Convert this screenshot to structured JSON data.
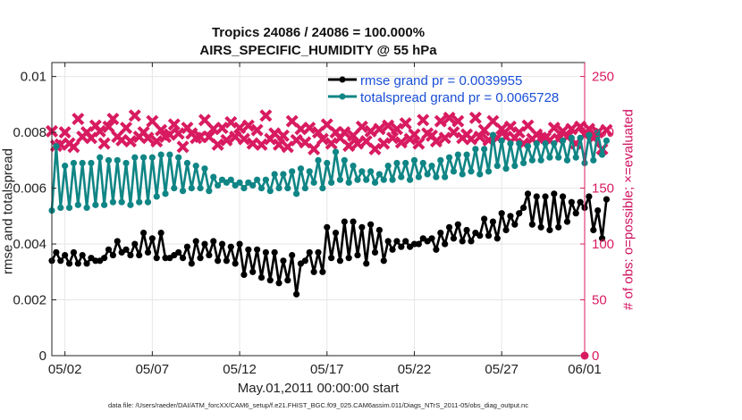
{
  "colors": {
    "rmse": "#000000",
    "spread": "#108585",
    "obs": "#d81b60",
    "grid": "#e6e6e6",
    "axis": "#222222",
    "legend_text": "#1a4fd6"
  },
  "page": {
    "title_line1": "Tropics 24086 / 24086 = 100.000%",
    "title_line2": "AIRS_SPECIFIC_HUMIDITY @ 55 hPa",
    "xlabel": "May.01,2011 00:00:00 start",
    "ylabel_left": "rmse and totalspread",
    "ylabel_right": "# of obs: o=possible; ×=evaluated",
    "datafile": "data file: /Users/raeder/DAI/ATM_forcXX/CAM6_setup/f.e21.FHIST_BGC.f09_025.CAM6assim.011/Diags_NTrS_2011-05/obs_diag_output.nc"
  },
  "chart_data": {
    "type": "line",
    "x_range": [
      0.5,
      31
    ],
    "x_ticks": [
      1.25,
      6.25,
      11.25,
      16.25,
      21.25,
      26.25,
      31.0
    ],
    "x_tick_labels": [
      "05/02",
      "05/07",
      "05/12",
      "05/17",
      "05/22",
      "05/27",
      "06/01"
    ],
    "ylim_left": [
      0,
      0.0105
    ],
    "yticks_left": [
      0,
      0.002,
      0.004,
      0.006,
      0.008,
      0.01
    ],
    "ytick_labels_left": [
      "0",
      "0.002",
      "0.004",
      "0.006",
      "0.008",
      "0.01"
    ],
    "ylim_right": [
      0,
      262.5
    ],
    "yticks_right": [
      0,
      50,
      100,
      150,
      200,
      250
    ],
    "ytick_labels_right": [
      "0",
      "50",
      "100",
      "150",
      "200",
      "250"
    ],
    "x_start": 0.5,
    "x_step": 0.25,
    "series": [
      {
        "name": "rmse grand pr = 0.0039955",
        "axis": "left",
        "color": "#000000",
        "marker": "circle",
        "values": [
          0.0034,
          0.0037,
          0.0034,
          0.0036,
          0.0033,
          0.0037,
          0.0033,
          0.0036,
          0.0033,
          0.0035,
          0.0034,
          0.0034,
          0.0035,
          0.0038,
          0.0036,
          0.0041,
          0.0037,
          0.0038,
          0.0036,
          0.004,
          0.0036,
          0.0044,
          0.0037,
          0.0042,
          0.0035,
          0.0044,
          0.0035,
          0.0035,
          0.0036,
          0.0037,
          0.0035,
          0.0039,
          0.0033,
          0.0041,
          0.0035,
          0.004,
          0.0036,
          0.0041,
          0.0034,
          0.004,
          0.0034,
          0.0039,
          0.0033,
          0.004,
          0.0029,
          0.0038,
          0.003,
          0.0038,
          0.0028,
          0.0037,
          0.0027,
          0.0037,
          0.0026,
          0.0034,
          0.0027,
          0.0036,
          0.0022,
          0.0033,
          0.0034,
          0.0037,
          0.003,
          0.0037,
          0.003,
          0.0046,
          0.0035,
          0.0044,
          0.0034,
          0.0048,
          0.0035,
          0.0048,
          0.0036,
          0.0046,
          0.0033,
          0.0047,
          0.0037,
          0.0045,
          0.0034,
          0.0041,
          0.0038,
          0.0041,
          0.0039,
          0.0041,
          0.0039,
          0.004,
          0.004,
          0.0042,
          0.0041,
          0.0042,
          0.0038,
          0.0044,
          0.004,
          0.0046,
          0.0042,
          0.0047,
          0.0041,
          0.0045,
          0.0041,
          0.0044,
          0.0043,
          0.0049,
          0.0043,
          0.0048,
          0.0042,
          0.0051,
          0.0045,
          0.005,
          0.0047,
          0.0051,
          0.0053,
          0.0058,
          0.0047,
          0.0057,
          0.0046,
          0.0057,
          0.0045,
          0.0058,
          0.0046,
          0.0057,
          0.0048,
          0.0055,
          0.0051,
          0.0055,
          0.0053,
          0.0057,
          0.0045,
          0.0052,
          0.0042,
          0.0056
        ]
      },
      {
        "name": "totalspread grand pr = 0.0065728",
        "axis": "left",
        "color": "#108585",
        "marker": "circle",
        "values": [
          0.0052,
          0.0075,
          0.0053,
          0.0068,
          0.0053,
          0.0069,
          0.0054,
          0.0069,
          0.0053,
          0.0069,
          0.0054,
          0.0071,
          0.0054,
          0.007,
          0.0055,
          0.007,
          0.0055,
          0.0069,
          0.0054,
          0.0071,
          0.0055,
          0.0071,
          0.0055,
          0.0071,
          0.0057,
          0.0072,
          0.0058,
          0.0072,
          0.006,
          0.0071,
          0.0059,
          0.0069,
          0.006,
          0.0068,
          0.006,
          0.0067,
          0.0059,
          0.0064,
          0.0061,
          0.0063,
          0.0062,
          0.0063,
          0.0061,
          0.0062,
          0.006,
          0.0062,
          0.0061,
          0.0063,
          0.006,
          0.0063,
          0.0059,
          0.0065,
          0.006,
          0.0065,
          0.006,
          0.0066,
          0.0058,
          0.0067,
          0.006,
          0.0066,
          0.0062,
          0.007,
          0.006,
          0.0069,
          0.0062,
          0.0073,
          0.0063,
          0.007,
          0.0062,
          0.0068,
          0.0063,
          0.0066,
          0.0063,
          0.0066,
          0.0062,
          0.0065,
          0.0063,
          0.0068,
          0.0063,
          0.0069,
          0.0064,
          0.0069,
          0.0063,
          0.007,
          0.0064,
          0.0069,
          0.0065,
          0.0068,
          0.0064,
          0.007,
          0.0064,
          0.0071,
          0.0066,
          0.0072,
          0.0065,
          0.0072,
          0.0066,
          0.0074,
          0.0065,
          0.0074,
          0.0066,
          0.0079,
          0.0068,
          0.0077,
          0.0067,
          0.0076,
          0.0068,
          0.0076,
          0.0069,
          0.0075,
          0.007,
          0.0076,
          0.007,
          0.0076,
          0.0071,
          0.0076,
          0.0071,
          0.0077,
          0.007,
          0.0078,
          0.0071,
          0.0078,
          0.0069,
          0.0079,
          0.007,
          0.008,
          0.0072,
          0.0077
        ]
      },
      {
        "name": "obs evaluated",
        "axis": "right",
        "color": "#d81b60",
        "marker": "cross",
        "values": [
          201,
          188,
          189,
          200,
          190,
          187,
          212,
          196,
          200,
          195,
          206,
          201,
          190,
          205,
          212,
          196,
          193,
          204,
          192,
          215,
          196,
          200,
          195,
          210,
          192,
          202,
          196,
          198,
          207,
          199,
          187,
          204,
          199,
          195,
          196,
          211,
          196,
          203,
          189,
          204,
          193,
          209,
          196,
          204,
          194,
          206,
          190,
          202,
          189,
          215,
          194,
          199,
          189,
          197,
          187,
          210,
          193,
          203,
          191,
          204,
          185,
          200,
          194,
          207,
          190,
          200,
          195,
          200,
          188,
          197,
          190,
          205,
          192,
          201,
          185,
          203,
          190,
          206,
          195,
          203,
          191,
          208,
          194,
          198,
          190,
          211,
          199,
          197,
          192,
          210,
          195,
          213,
          200,
          210,
          195,
          198,
          194,
          213,
          196,
          202,
          193,
          210,
          195,
          203,
          196,
          205,
          195,
          200,
          190,
          206,
          194,
          198,
          195,
          195,
          193,
          204,
          194,
          201,
          196,
          203,
          190,
          205,
          198,
          203,
          195,
          200,
          185,
          202
        ]
      },
      {
        "name": "obs possible",
        "axis": "right",
        "color": "#d81b60",
        "marker": "circle",
        "values": [
          0
        ]
      }
    ]
  },
  "legend": {
    "rmse": "rmse grand pr = 0.0039955",
    "spread": "totalspread grand pr = 0.0065728"
  }
}
